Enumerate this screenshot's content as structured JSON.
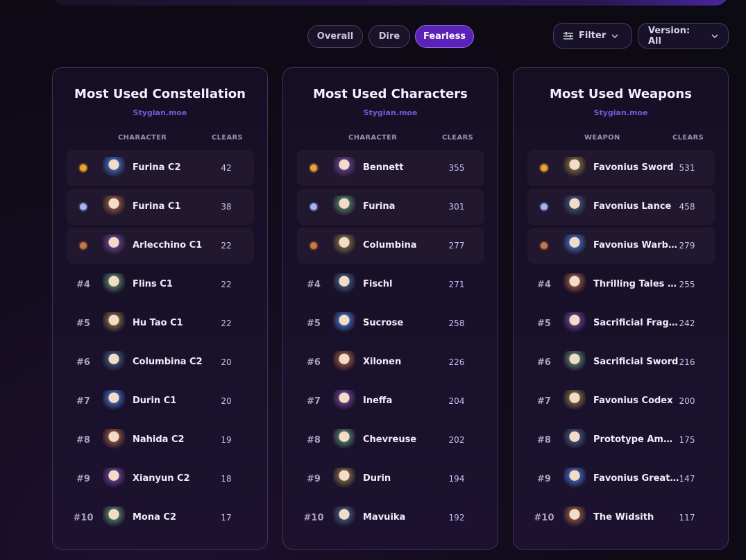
{
  "tabs": [
    "Overall",
    "Dire",
    "Fearless"
  ],
  "active_tab": "Fearless",
  "controls": {
    "filter": "Filter",
    "version": "Version: All"
  },
  "panels": [
    {
      "title": "Most Used Constellation",
      "source": "Stygian.moe",
      "columns": [
        "CHARACTER",
        "CLEARS"
      ],
      "rows": [
        {
          "name": "Furina C2",
          "clears": 42
        },
        {
          "name": "Furina C1",
          "clears": 38
        },
        {
          "name": "Arlecchino C1",
          "clears": 22
        },
        {
          "rank": "#4",
          "name": "Flins C1",
          "clears": 22
        },
        {
          "rank": "#5",
          "name": "Hu Tao C1",
          "clears": 22
        },
        {
          "rank": "#6",
          "name": "Columbina C2",
          "clears": 20
        },
        {
          "rank": "#7",
          "name": "Durin C1",
          "clears": 20
        },
        {
          "rank": "#8",
          "name": "Nahida C2",
          "clears": 19
        },
        {
          "rank": "#9",
          "name": "Xianyun C2",
          "clears": 18
        },
        {
          "rank": "#10",
          "name": "Mona C2",
          "clears": 17
        }
      ]
    },
    {
      "title": "Most Used Characters",
      "source": "Stygian.moe",
      "columns": [
        "CHARACTER",
        "CLEARS"
      ],
      "rows": [
        {
          "name": "Bennett",
          "clears": 355
        },
        {
          "name": "Furina",
          "clears": 301
        },
        {
          "name": "Columbina",
          "clears": 277
        },
        {
          "rank": "#4",
          "name": "Fischl",
          "clears": 271
        },
        {
          "rank": "#5",
          "name": "Sucrose",
          "clears": 258
        },
        {
          "rank": "#6",
          "name": "Xilonen",
          "clears": 226
        },
        {
          "rank": "#7",
          "name": "Ineffa",
          "clears": 204
        },
        {
          "rank": "#8",
          "name": "Chevreuse",
          "clears": 202
        },
        {
          "rank": "#9",
          "name": "Durin",
          "clears": 194
        },
        {
          "rank": "#10",
          "name": "Mavuika",
          "clears": 192
        }
      ]
    },
    {
      "title": "Most Used Weapons",
      "source": "Stygian.moe",
      "columns": [
        "WEAPON",
        "CLEARS"
      ],
      "rows": [
        {
          "name": "Favonius Sword",
          "clears": 531
        },
        {
          "name": "Favonius Lance",
          "clears": 458
        },
        {
          "name": "Favonius Warb…",
          "clears": 279
        },
        {
          "rank": "#4",
          "name": "Thrilling Tales …",
          "clears": 255
        },
        {
          "rank": "#5",
          "name": "Sacrificial Frag…",
          "clears": 242
        },
        {
          "rank": "#6",
          "name": "Sacrificial Sword",
          "clears": 216
        },
        {
          "rank": "#7",
          "name": "Favonius Codex",
          "clears": 200
        },
        {
          "rank": "#8",
          "name": "Prototype Am…",
          "clears": 175
        },
        {
          "rank": "#9",
          "name": "Favonius Great…",
          "clears": 147
        },
        {
          "rank": "#10",
          "name": "The Widsith",
          "clears": 117
        }
      ]
    }
  ]
}
